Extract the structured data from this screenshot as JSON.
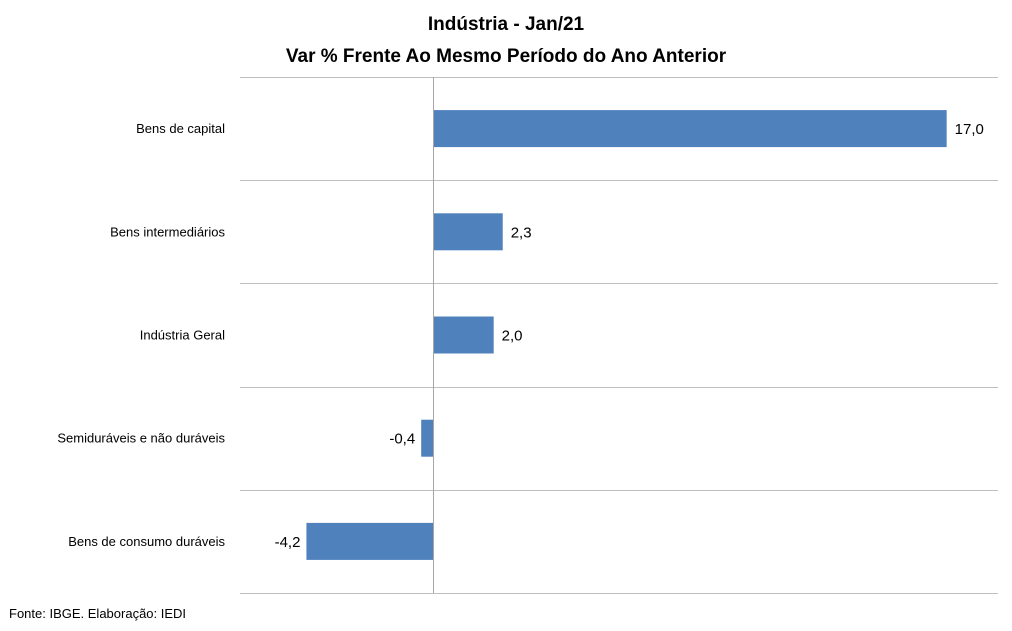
{
  "chart_data": {
    "type": "bar",
    "orientation": "horizontal",
    "title": "Indústria - Jan/21",
    "subtitle": "Var % Frente Ao Mesmo Período do Ano Anterior",
    "categories": [
      "Bens de capital",
      "Bens intermediários",
      "Indústria Geral",
      "Semiduráveis e não duráveis",
      "Bens de consumo duráveis"
    ],
    "values": [
      17.0,
      2.3,
      2.0,
      -0.4,
      -4.2
    ],
    "value_labels": [
      "17,0",
      "2,3",
      "2,0",
      "-0,4",
      "-4,2"
    ],
    "xlim": [
      -6.4,
      18.7
    ],
    "grid": "horizontal lines between categories",
    "legend": "none",
    "bar_color": "#4F81BD",
    "grid_color": "#BFBFBF",
    "axis_color": "#A6A6A6"
  },
  "source": "Fonte: IBGE. Elaboração: IEDI"
}
